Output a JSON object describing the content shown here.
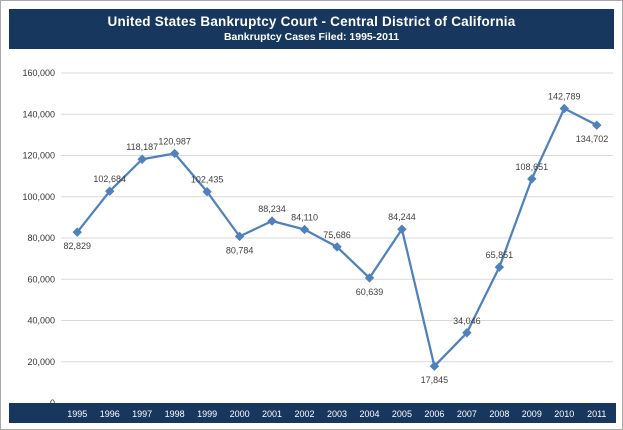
{
  "chart_data": {
    "type": "line",
    "title": "United States Bankruptcy Court - Central District of California",
    "subtitle": "Bankruptcy Cases Filed:  1995-2011",
    "categories": [
      "1995",
      "1996",
      "1997",
      "1998",
      "1999",
      "2000",
      "2001",
      "2002",
      "2003",
      "2004",
      "2005",
      "2006",
      "2007",
      "2008",
      "2009",
      "2010",
      "2011"
    ],
    "values": [
      82829,
      102684,
      118187,
      120987,
      102435,
      80784,
      88234,
      84110,
      75686,
      60639,
      84244,
      17845,
      34046,
      65851,
      108651,
      142789,
      134702
    ],
    "point_labels": [
      "82,829",
      "102,684",
      "118,187",
      "120,987",
      "102,435",
      "80,784",
      "88,234",
      "84,110",
      "75,686",
      "60,639",
      "84,244",
      "17,845",
      "34,046",
      "65,851",
      "108,651",
      "142,789",
      "134,702"
    ],
    "label_positions": [
      "below",
      "above",
      "above",
      "above",
      "above",
      "below",
      "above",
      "above",
      "above",
      "below",
      "above",
      "below",
      "above",
      "above",
      "above",
      "above",
      "below"
    ],
    "ylim": [
      0,
      160000
    ],
    "ytick_step": 20000,
    "ytick_labels": [
      "0",
      "20,000",
      "40,000",
      "60,000",
      "80,000",
      "100,000",
      "120,000",
      "140,000",
      "160,000"
    ],
    "grid": "horizontal",
    "legend": "none",
    "colors": {
      "line": "#4F81BD",
      "marker": "#4F81BD",
      "band": "#17375E",
      "grid": "#D9D9D9",
      "tick_text": "#333333",
      "data_label": "#3F3F3F",
      "year_text": "#FFFFFF"
    }
  }
}
